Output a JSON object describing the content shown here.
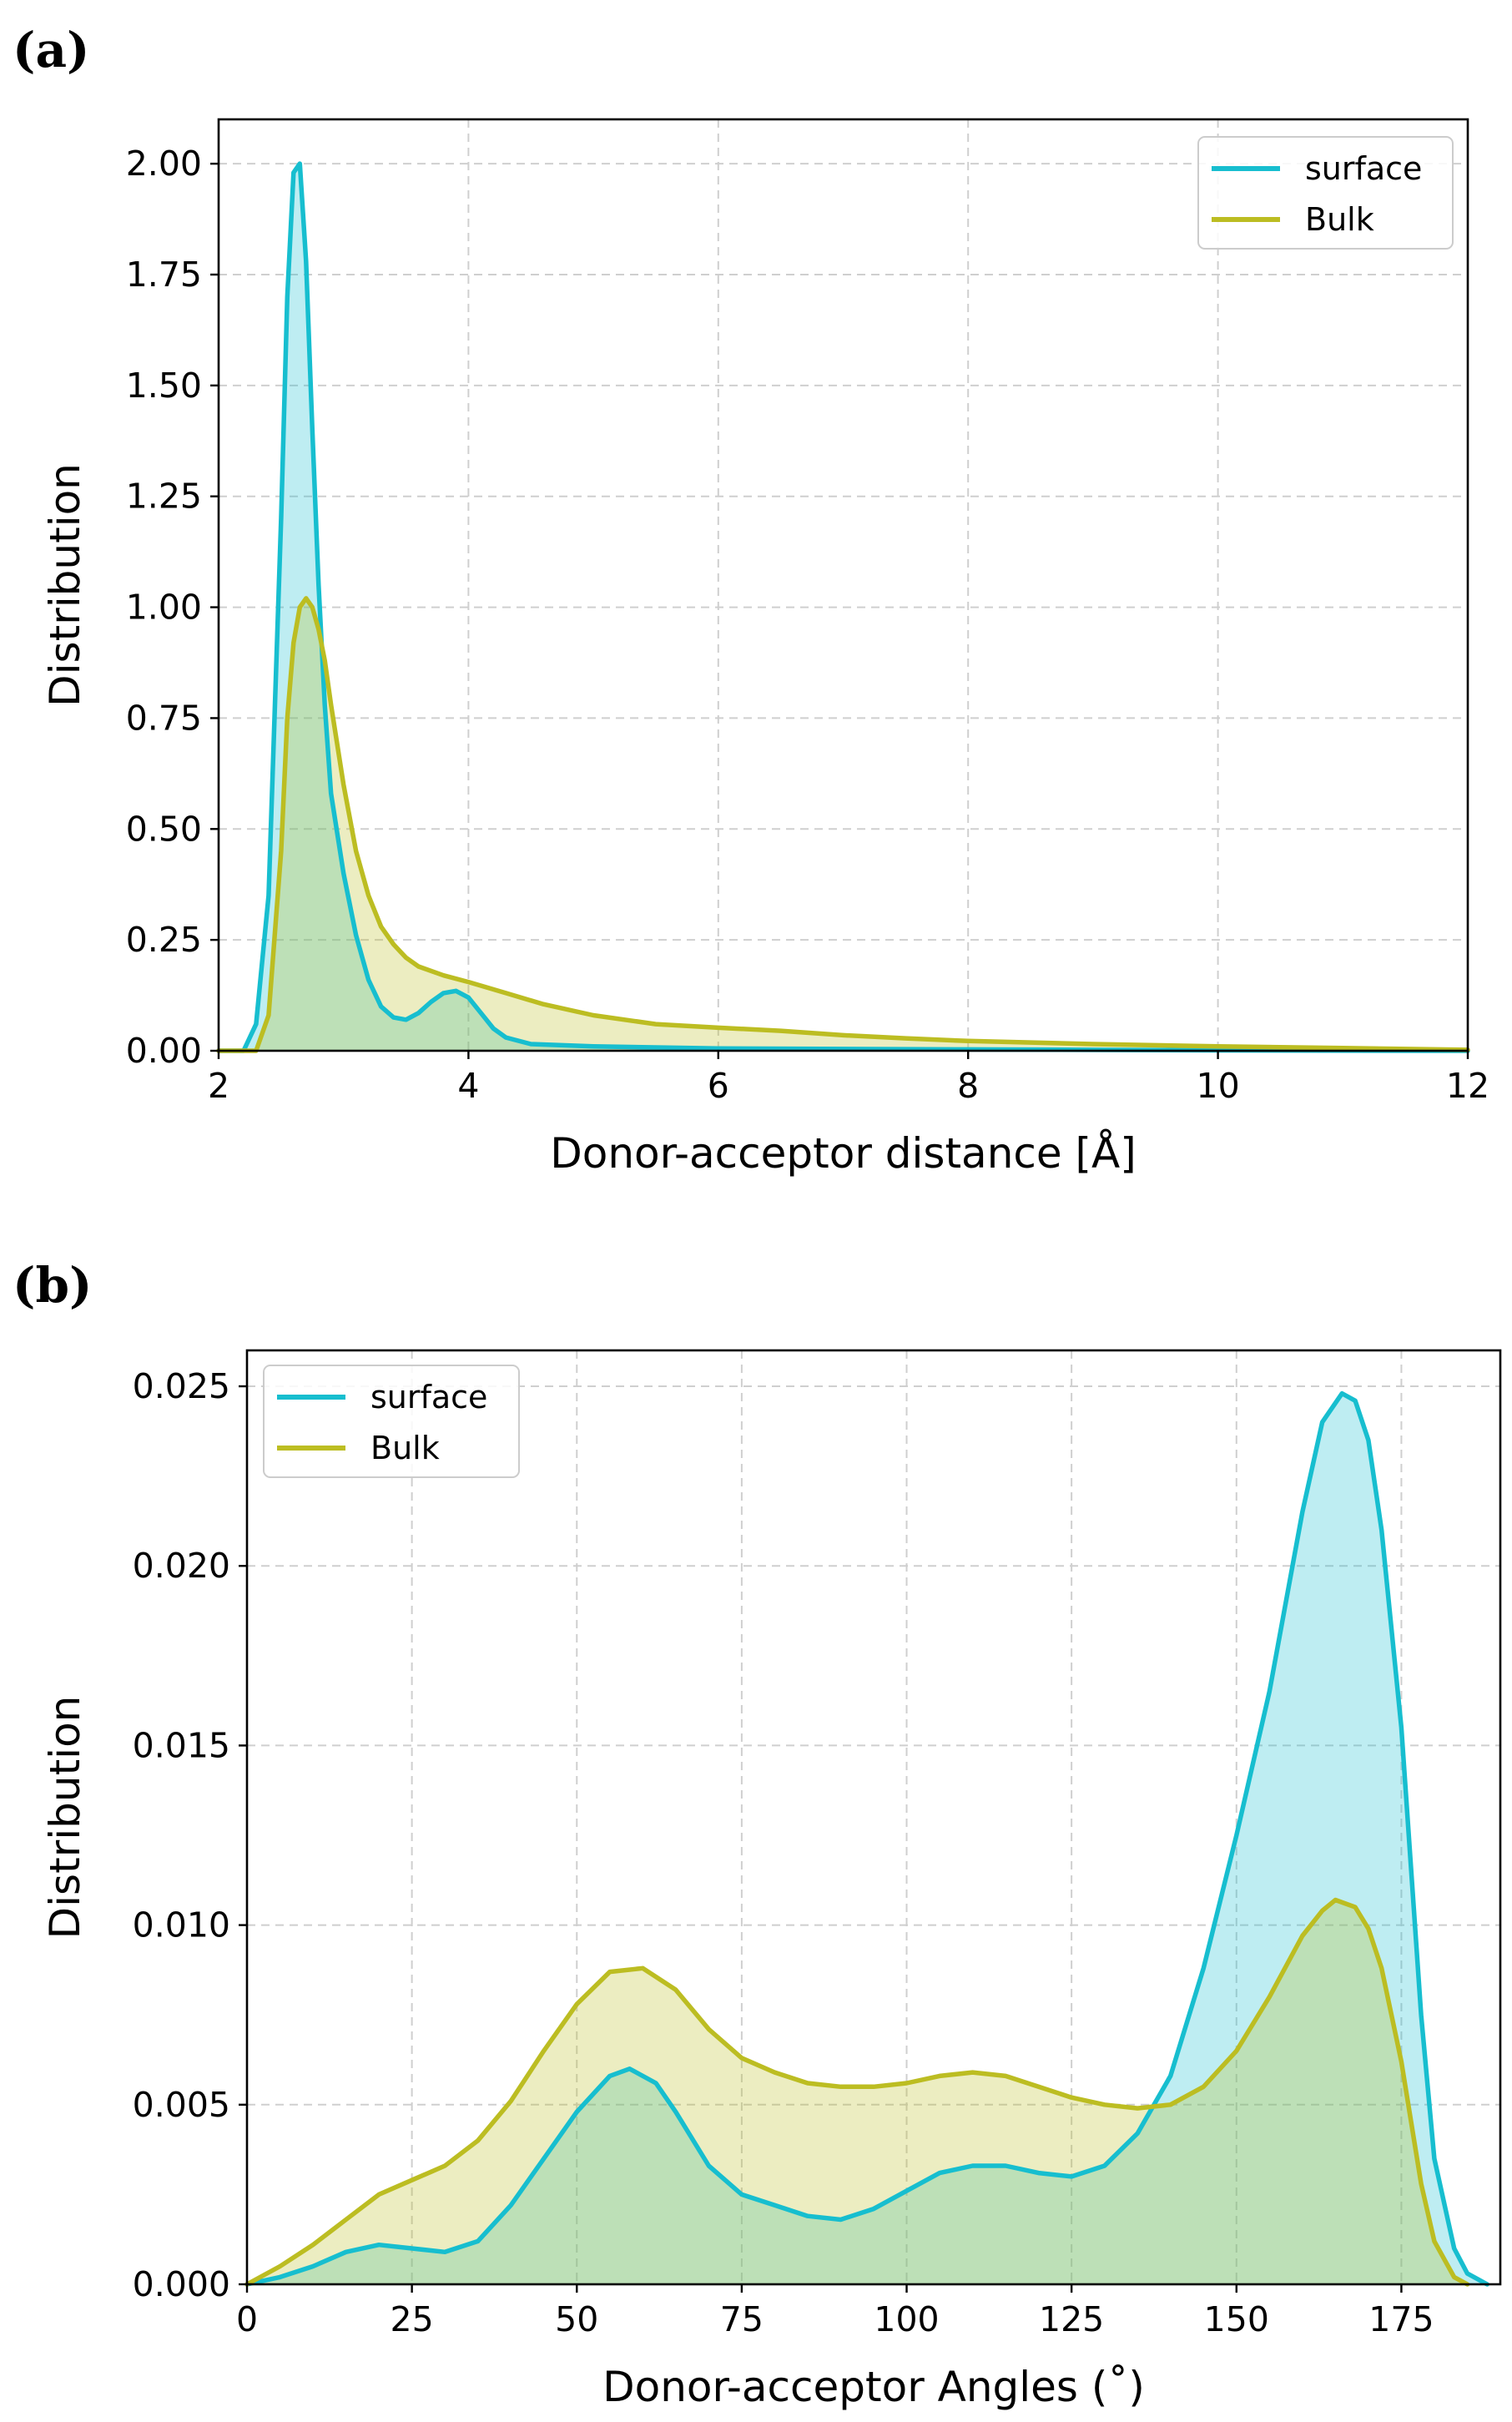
{
  "panels": {
    "a": {
      "label": "(a)"
    },
    "b": {
      "label": "(b)"
    }
  },
  "chart_data": [
    {
      "panel": "a",
      "type": "area",
      "title": "",
      "xlabel": "Donor-acceptor distance [Å]",
      "ylabel": "Distribution",
      "xlim": [
        2,
        12
      ],
      "ylim": [
        0,
        2.1
      ],
      "xticks": [
        2,
        4,
        6,
        8,
        10,
        12
      ],
      "xtick_labels": [
        "2",
        "4",
        "6",
        "8",
        "10",
        "12"
      ],
      "yticks": [
        0,
        0.25,
        0.5,
        0.75,
        1.0,
        1.25,
        1.5,
        1.75,
        2.0
      ],
      "ytick_labels": [
        "0.00",
        "0.25",
        "0.50",
        "0.75",
        "1.00",
        "1.25",
        "1.50",
        "1.75",
        "2.00"
      ],
      "grid": true,
      "legend_position": "top-right",
      "series": [
        {
          "name": "surface",
          "color": "#17becf",
          "fill": "#bbe9ef",
          "x": [
            2.0,
            2.2,
            2.3,
            2.4,
            2.5,
            2.55,
            2.6,
            2.65,
            2.7,
            2.75,
            2.8,
            2.85,
            2.9,
            3.0,
            3.1,
            3.2,
            3.3,
            3.4,
            3.5,
            3.6,
            3.7,
            3.8,
            3.9,
            4.0,
            4.1,
            4.2,
            4.3,
            4.5,
            5.0,
            6.0,
            8.0,
            10.0,
            12.0
          ],
          "y": [
            0.0,
            0.0,
            0.06,
            0.35,
            1.2,
            1.7,
            1.98,
            2.0,
            1.78,
            1.4,
            1.05,
            0.78,
            0.58,
            0.4,
            0.26,
            0.16,
            0.1,
            0.075,
            0.07,
            0.085,
            0.11,
            0.13,
            0.135,
            0.12,
            0.085,
            0.05,
            0.03,
            0.015,
            0.01,
            0.005,
            0.003,
            0.001,
            0.0
          ]
        },
        {
          "name": "Bulk",
          "color": "#bcbd22",
          "fill": "#e9eabf",
          "x": [
            2.0,
            2.3,
            2.4,
            2.5,
            2.55,
            2.6,
            2.65,
            2.7,
            2.75,
            2.8,
            2.85,
            2.9,
            3.0,
            3.1,
            3.2,
            3.3,
            3.4,
            3.5,
            3.6,
            3.8,
            4.0,
            4.3,
            4.6,
            5.0,
            5.5,
            6.0,
            6.5,
            7.0,
            7.5,
            8.0,
            9.0,
            10.0,
            11.0,
            12.0
          ],
          "y": [
            0.0,
            0.0,
            0.08,
            0.45,
            0.75,
            0.92,
            1.0,
            1.02,
            1.0,
            0.95,
            0.88,
            0.78,
            0.6,
            0.45,
            0.35,
            0.28,
            0.24,
            0.21,
            0.19,
            0.17,
            0.155,
            0.13,
            0.105,
            0.08,
            0.06,
            0.052,
            0.045,
            0.035,
            0.028,
            0.022,
            0.015,
            0.01,
            0.006,
            0.002
          ]
        }
      ]
    },
    {
      "panel": "b",
      "type": "area",
      "title": "",
      "xlabel": "Donor-acceptor Angles (˚)",
      "ylabel": "Distribution",
      "xlim": [
        0,
        190
      ],
      "ylim": [
        0,
        0.026
      ],
      "xticks": [
        0,
        25,
        50,
        75,
        100,
        125,
        150,
        175
      ],
      "xtick_labels": [
        "0",
        "25",
        "50",
        "75",
        "100",
        "125",
        "150",
        "175"
      ],
      "yticks": [
        0,
        0.005,
        0.01,
        0.015,
        0.02,
        0.025
      ],
      "ytick_labels": [
        "0.000",
        "0.005",
        "0.010",
        "0.015",
        "0.020",
        "0.025"
      ],
      "grid": true,
      "legend_position": "top-left",
      "series": [
        {
          "name": "surface",
          "color": "#17becf",
          "fill": "#bbe9ef",
          "x": [
            0,
            5,
            10,
            15,
            20,
            25,
            30,
            35,
            40,
            45,
            50,
            55,
            58,
            62,
            65,
            70,
            75,
            80,
            85,
            90,
            95,
            100,
            105,
            110,
            115,
            120,
            125,
            130,
            135,
            140,
            145,
            150,
            155,
            160,
            163,
            166,
            168,
            170,
            172,
            175,
            178,
            180,
            183,
            185,
            188
          ],
          "y": [
            0.0,
            0.0002,
            0.0005,
            0.0009,
            0.0011,
            0.001,
            0.0009,
            0.0012,
            0.0022,
            0.0035,
            0.0048,
            0.0058,
            0.006,
            0.0056,
            0.0048,
            0.0033,
            0.0025,
            0.0022,
            0.0019,
            0.0018,
            0.0021,
            0.0026,
            0.0031,
            0.0033,
            0.0033,
            0.0031,
            0.003,
            0.0033,
            0.0042,
            0.0058,
            0.0088,
            0.0125,
            0.0165,
            0.0215,
            0.024,
            0.0248,
            0.0246,
            0.0235,
            0.021,
            0.0155,
            0.0075,
            0.0035,
            0.001,
            0.0003,
            0.0
          ]
        },
        {
          "name": "Bulk",
          "color": "#bcbd22",
          "fill": "#e9eabf",
          "x": [
            0,
            5,
            10,
            15,
            20,
            25,
            30,
            35,
            40,
            45,
            50,
            55,
            60,
            65,
            70,
            75,
            80,
            85,
            90,
            95,
            100,
            105,
            110,
            115,
            120,
            125,
            130,
            135,
            140,
            145,
            150,
            155,
            160,
            163,
            165,
            168,
            170,
            172,
            175,
            178,
            180,
            183,
            185
          ],
          "y": [
            0.0,
            0.0005,
            0.0011,
            0.0018,
            0.0025,
            0.0029,
            0.0033,
            0.004,
            0.0051,
            0.0065,
            0.0078,
            0.0087,
            0.0088,
            0.0082,
            0.0071,
            0.0063,
            0.0059,
            0.0056,
            0.0055,
            0.0055,
            0.0056,
            0.0058,
            0.0059,
            0.0058,
            0.0055,
            0.0052,
            0.005,
            0.0049,
            0.005,
            0.0055,
            0.0065,
            0.008,
            0.0097,
            0.0104,
            0.0107,
            0.0105,
            0.0099,
            0.0088,
            0.0062,
            0.0028,
            0.0012,
            0.0002,
            0.0
          ]
        }
      ]
    }
  ]
}
